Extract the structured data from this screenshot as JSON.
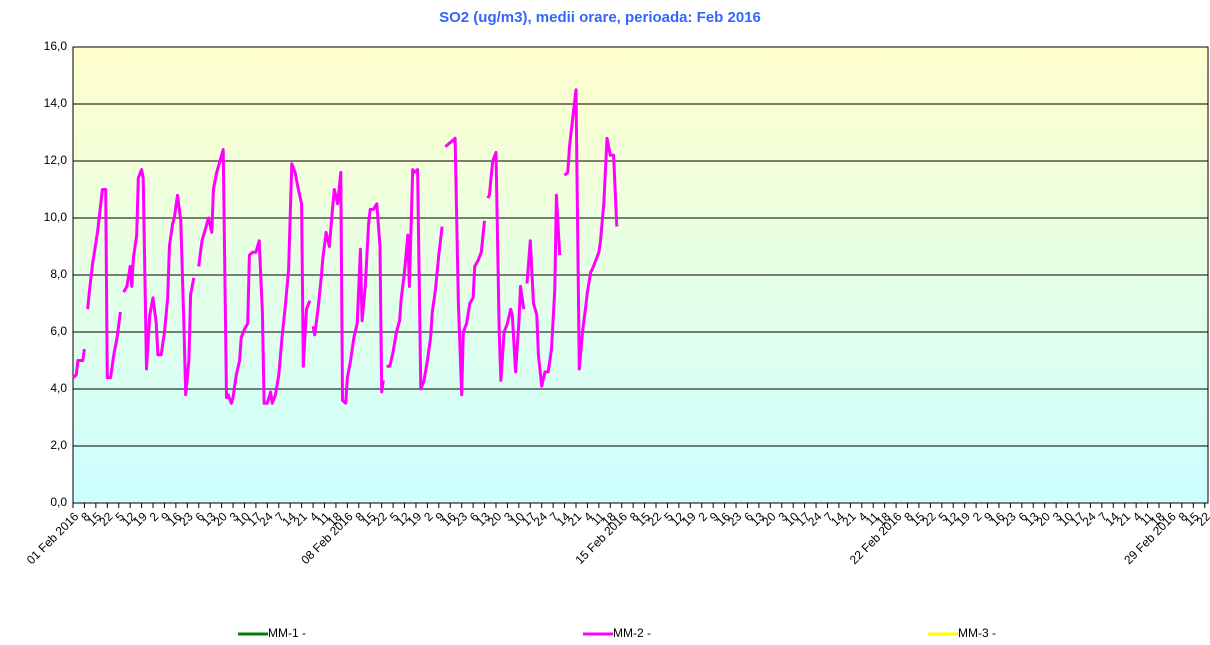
{
  "chart_data": {
    "type": "line",
    "title": "SO2 (ug/m3), medii orare, perioada:  Feb 2016",
    "xlim": [
      0,
      695
    ],
    "xticks": [
      {
        "value": 0,
        "label": "01 Feb 2016"
      },
      {
        "value": 7,
        "label": "8"
      },
      {
        "value": 14,
        "label": "15"
      },
      {
        "value": 21,
        "label": "22"
      },
      {
        "value": 28,
        "label": "5"
      },
      {
        "value": 35,
        "label": "12"
      },
      {
        "value": 42,
        "label": "19"
      },
      {
        "value": 49,
        "label": "2"
      },
      {
        "value": 56,
        "label": "9"
      },
      {
        "value": 63,
        "label": "16"
      },
      {
        "value": 70,
        "label": "23"
      },
      {
        "value": 77,
        "label": "6"
      },
      {
        "value": 84,
        "label": "13"
      },
      {
        "value": 91,
        "label": "20"
      },
      {
        "value": 98,
        "label": "3"
      },
      {
        "value": 105,
        "label": "10"
      },
      {
        "value": 112,
        "label": "17"
      },
      {
        "value": 119,
        "label": "24"
      },
      {
        "value": 126,
        "label": "7"
      },
      {
        "value": 133,
        "label": "14"
      },
      {
        "value": 140,
        "label": "21"
      },
      {
        "value": 147,
        "label": "4"
      },
      {
        "value": 154,
        "label": "11"
      },
      {
        "value": 161,
        "label": "18"
      },
      {
        "value": 168,
        "label": "08 Feb 2016"
      },
      {
        "value": 175,
        "label": "8"
      },
      {
        "value": 182,
        "label": "15"
      },
      {
        "value": 189,
        "label": "22"
      },
      {
        "value": 196,
        "label": "5"
      },
      {
        "value": 203,
        "label": "12"
      },
      {
        "value": 210,
        "label": "19"
      },
      {
        "value": 217,
        "label": "2"
      },
      {
        "value": 224,
        "label": "9"
      },
      {
        "value": 231,
        "label": "16"
      },
      {
        "value": 238,
        "label": "23"
      },
      {
        "value": 245,
        "label": "6"
      },
      {
        "value": 252,
        "label": "13"
      },
      {
        "value": 259,
        "label": "20"
      },
      {
        "value": 266,
        "label": "3"
      },
      {
        "value": 273,
        "label": "10"
      },
      {
        "value": 280,
        "label": "17"
      },
      {
        "value": 287,
        "label": "24"
      },
      {
        "value": 294,
        "label": "7"
      },
      {
        "value": 301,
        "label": "14"
      },
      {
        "value": 308,
        "label": "21"
      },
      {
        "value": 315,
        "label": "4"
      },
      {
        "value": 322,
        "label": "11"
      },
      {
        "value": 329,
        "label": "18"
      },
      {
        "value": 336,
        "label": "15 Feb 2016"
      },
      {
        "value": 343,
        "label": "8"
      },
      {
        "value": 350,
        "label": "15"
      },
      {
        "value": 357,
        "label": "22"
      },
      {
        "value": 364,
        "label": "5"
      },
      {
        "value": 371,
        "label": "12"
      },
      {
        "value": 378,
        "label": "19"
      },
      {
        "value": 385,
        "label": "2"
      },
      {
        "value": 392,
        "label": "9"
      },
      {
        "value": 399,
        "label": "16"
      },
      {
        "value": 406,
        "label": "23"
      },
      {
        "value": 413,
        "label": "6"
      },
      {
        "value": 420,
        "label": "13"
      },
      {
        "value": 427,
        "label": "20"
      },
      {
        "value": 434,
        "label": "3"
      },
      {
        "value": 441,
        "label": "10"
      },
      {
        "value": 448,
        "label": "17"
      },
      {
        "value": 455,
        "label": "24"
      },
      {
        "value": 462,
        "label": "7"
      },
      {
        "value": 469,
        "label": "14"
      },
      {
        "value": 476,
        "label": "21"
      },
      {
        "value": 483,
        "label": "4"
      },
      {
        "value": 490,
        "label": "11"
      },
      {
        "value": 497,
        "label": "18"
      },
      {
        "value": 504,
        "label": "22 Feb 2016"
      },
      {
        "value": 511,
        "label": "8"
      },
      {
        "value": 518,
        "label": "15"
      },
      {
        "value": 525,
        "label": "22"
      },
      {
        "value": 532,
        "label": "5"
      },
      {
        "value": 539,
        "label": "12"
      },
      {
        "value": 546,
        "label": "19"
      },
      {
        "value": 553,
        "label": "2"
      },
      {
        "value": 560,
        "label": "9"
      },
      {
        "value": 567,
        "label": "16"
      },
      {
        "value": 574,
        "label": "23"
      },
      {
        "value": 581,
        "label": "6"
      },
      {
        "value": 588,
        "label": "13"
      },
      {
        "value": 595,
        "label": "20"
      },
      {
        "value": 602,
        "label": "3"
      },
      {
        "value": 609,
        "label": "10"
      },
      {
        "value": 616,
        "label": "17"
      },
      {
        "value": 623,
        "label": "24"
      },
      {
        "value": 630,
        "label": "7"
      },
      {
        "value": 637,
        "label": "14"
      },
      {
        "value": 644,
        "label": "21"
      },
      {
        "value": 651,
        "label": "4"
      },
      {
        "value": 658,
        "label": "11"
      },
      {
        "value": 665,
        "label": "18"
      },
      {
        "value": 672,
        "label": "29 Feb 2016"
      },
      {
        "value": 679,
        "label": "8"
      },
      {
        "value": 686,
        "label": "15"
      },
      {
        "value": 693,
        "label": "22"
      }
    ],
    "ylim": [
      0,
      16
    ],
    "yticks": [
      {
        "value": 0,
        "label": "0,0"
      },
      {
        "value": 2,
        "label": "2,0"
      },
      {
        "value": 4,
        "label": "4,0"
      },
      {
        "value": 6,
        "label": "6,0"
      },
      {
        "value": 8,
        "label": "8,0"
      },
      {
        "value": 10,
        "label": "10,0"
      },
      {
        "value": 12,
        "label": "12,0"
      },
      {
        "value": 14,
        "label": "14,0"
      },
      {
        "value": 16,
        "label": "16,0"
      }
    ],
    "grid": true,
    "legend": "bottom",
    "series": [
      {
        "name": "MM-1 -",
        "color": "#008000",
        "x": [],
        "values": []
      },
      {
        "name": "MM-2 -",
        "color": "#ff00ff",
        "x": [
          0,
          2,
          3,
          6,
          7,
          8,
          9,
          10,
          12,
          15,
          17,
          18,
          20,
          21,
          23,
          25,
          27,
          29,
          30,
          31,
          33,
          35,
          36,
          37,
          39,
          40,
          42,
          43,
          45,
          47,
          49,
          51,
          52,
          54,
          56,
          58,
          59,
          61,
          62,
          64,
          66,
          68,
          69,
          71,
          72,
          74,
          75,
          77,
          79,
          81,
          83,
          85,
          86,
          88,
          91,
          92,
          94,
          95,
          97,
          98,
          100,
          102,
          103,
          105,
          107,
          108,
          110,
          112,
          114,
          116,
          117,
          119,
          121,
          122,
          124,
          126,
          128,
          130,
          132,
          134,
          136,
          138,
          140,
          141,
          143,
          145,
          146,
          147,
          148,
          150,
          152,
          153,
          155,
          157,
          159,
          160,
          162,
          164,
          165,
          167,
          168,
          170,
          172,
          174,
          176,
          177,
          179,
          181,
          182,
          184,
          186,
          188,
          189,
          190,
          191,
          192,
          194,
          196,
          198,
          200,
          201,
          203,
          205,
          206,
          208,
          209,
          211,
          213,
          215,
          217,
          219,
          220,
          222,
          224,
          226,
          227,
          228,
          230,
          232,
          234,
          236,
          238,
          239,
          241,
          243,
          245,
          246,
          248,
          250,
          252,
          253,
          254,
          255,
          257,
          259,
          261,
          262,
          264,
          266,
          268,
          269,
          271,
          273,
          274,
          276,
          277,
          278,
          280,
          282,
          284,
          285,
          287,
          289,
          291,
          293,
          295,
          296,
          298,
          299,
          301,
          303,
          304,
          306,
          308,
          310,
          312,
          314,
          315,
          317,
          318,
          320,
          322,
          323,
          325,
          327,
          329,
          331,
          333
        ],
        "values": [
          4.4,
          4.5,
          5.0,
          5.0,
          5.4,
          null,
          6.8,
          7.4,
          8.4,
          9.5,
          10.5,
          11.0,
          11.0,
          4.4,
          4.4,
          5.2,
          5.8,
          6.7,
          null,
          7.4,
          7.6,
          8.3,
          7.6,
          8.6,
          9.4,
          11.4,
          11.7,
          11.4,
          4.7,
          6.6,
          7.2,
          6.3,
          5.2,
          5.2,
          6.0,
          7.2,
          9.0,
          9.8,
          10.0,
          10.8,
          9.9,
          6.0,
          3.8,
          5.0,
          7.3,
          7.9,
          null,
          8.3,
          9.2,
          9.6,
          10.0,
          9.5,
          11.0,
          11.6,
          12.2,
          12.4,
          3.7,
          3.8,
          3.5,
          3.7,
          4.5,
          5.0,
          5.8,
          6.1,
          6.3,
          8.7,
          8.8,
          8.8,
          9.2,
          6.7,
          3.5,
          3.5,
          3.9,
          3.5,
          3.8,
          4.5,
          5.8,
          6.9,
          8.2,
          11.9,
          11.6,
          11.0,
          10.5,
          4.8,
          6.8,
          7.1,
          null,
          6.2,
          5.9,
          6.8,
          7.9,
          8.6,
          9.5,
          9.0,
          10.4,
          11.0,
          10.5,
          11.6,
          3.6,
          3.5,
          4.4,
          5.0,
          5.8,
          6.3,
          8.9,
          6.4,
          7.6,
          9.8,
          10.3,
          10.3,
          10.5,
          9.0,
          3.9,
          4.3,
          null,
          4.8,
          4.8,
          5.3,
          6.0,
          6.4,
          7.2,
          8.1,
          9.4,
          7.6,
          11.7,
          11.6,
          11.7,
          4.0,
          4.3,
          5.0,
          5.8,
          6.7,
          7.5,
          8.7,
          9.7,
          null,
          12.5,
          12.6,
          12.7,
          12.8,
          7.0,
          3.8,
          6.0,
          6.3,
          7.0,
          7.2,
          8.3,
          8.5,
          8.8,
          9.9,
          null,
          10.7,
          10.8,
          12.0,
          12.3,
          6.0,
          4.3,
          6.0,
          6.3,
          6.8,
          6.6,
          4.6,
          6.3,
          7.6,
          6.8,
          null,
          7.7,
          9.2,
          7.0,
          6.6,
          5.2,
          4.1,
          4.6,
          4.6,
          5.4,
          7.5,
          10.8,
          8.7,
          null,
          11.5,
          11.6,
          12.5,
          13.5,
          14.5,
          4.7,
          6.0,
          6.9,
          7.4,
          8.1,
          8.2,
          8.5,
          8.8,
          9.2,
          10.5,
          12.8,
          12.2,
          12.2,
          9.7
        ]
      },
      {
        "name": "MM-3 -",
        "color": "#ffff00",
        "x": [],
        "values": []
      }
    ]
  }
}
